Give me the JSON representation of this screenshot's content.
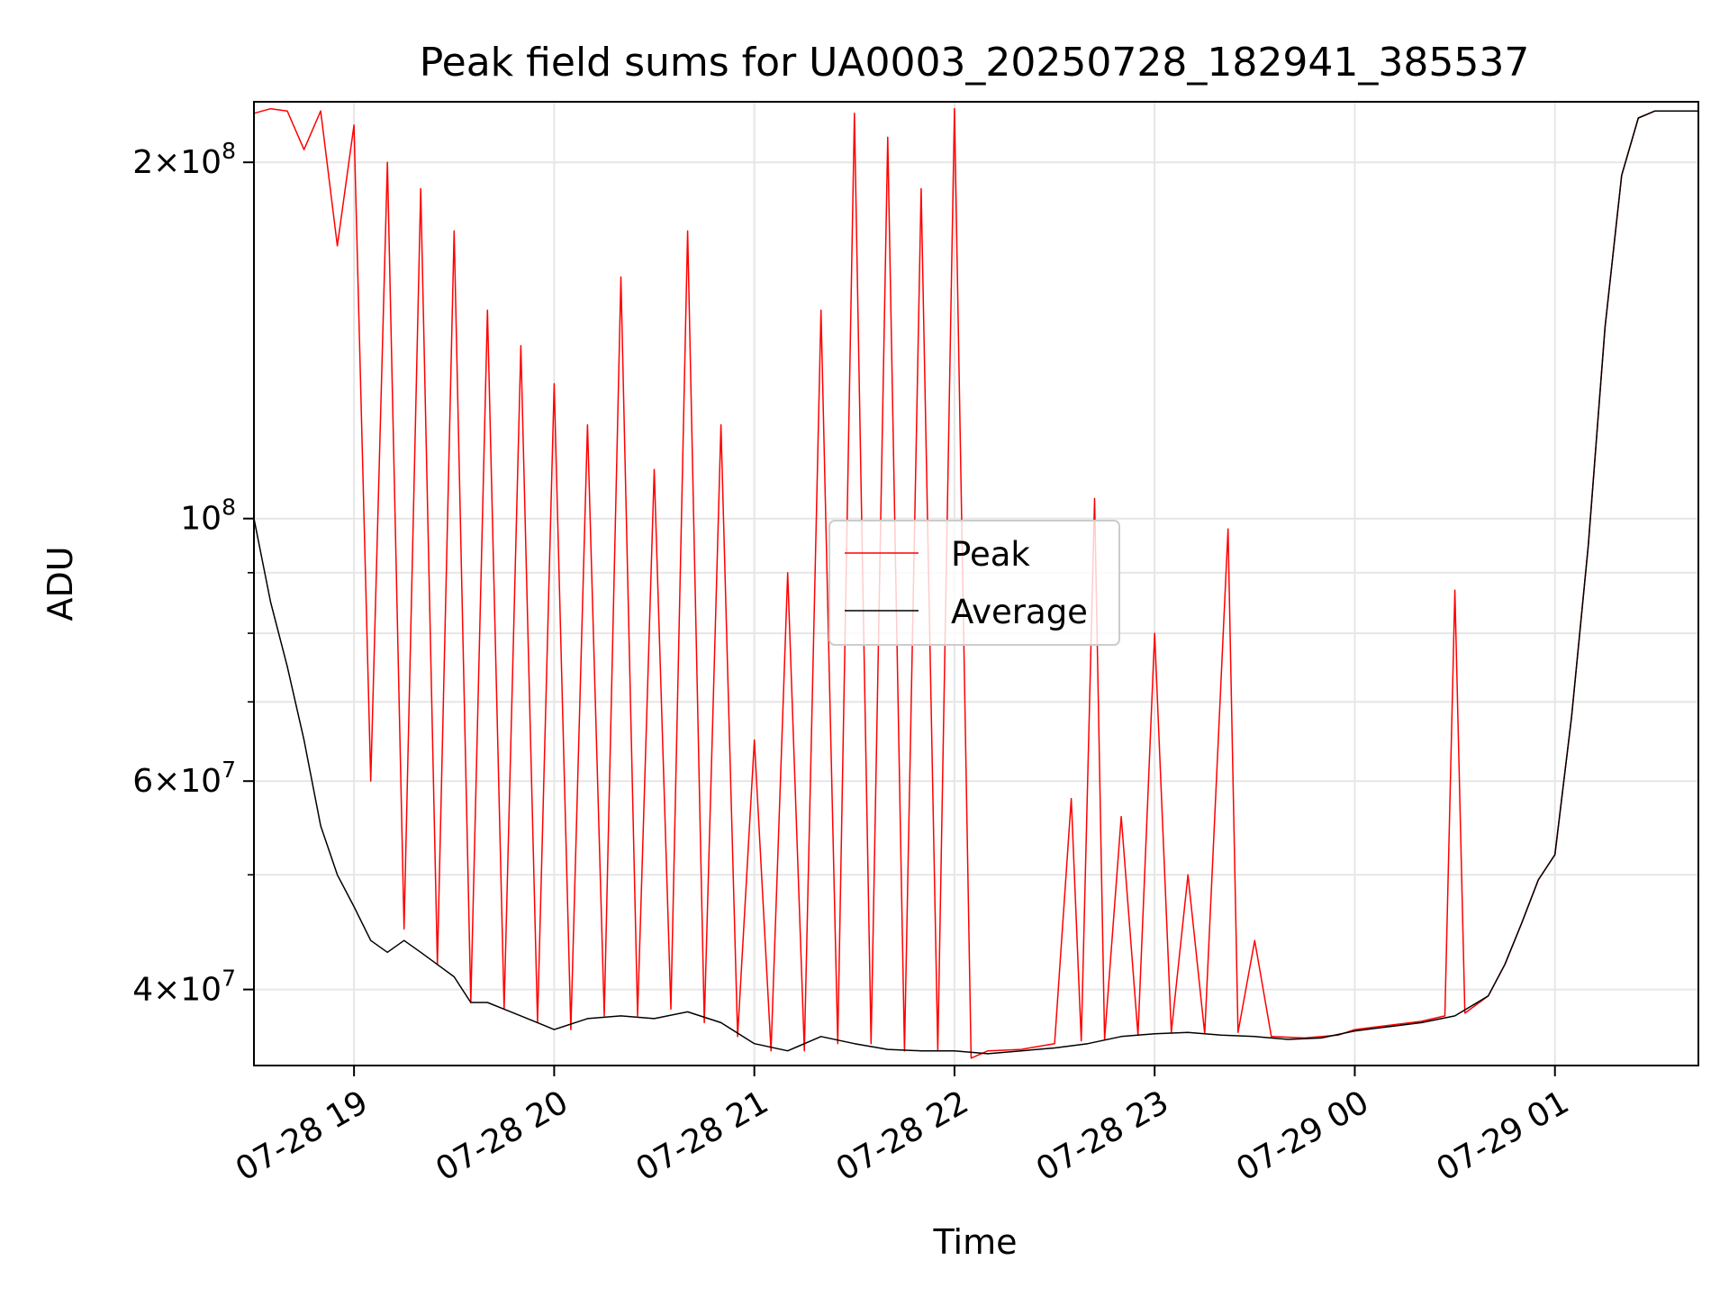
{
  "chart_data": {
    "type": "line",
    "title": "Peak field sums for UA0003_20250728_182941_385537",
    "xlabel": "Time",
    "ylabel": "ADU",
    "y_scale": "log",
    "ylim": [
      34500000,
      225000000
    ],
    "xlim": [
      "2025-07-28 18:30",
      "2025-07-29 01:43"
    ],
    "grid": true,
    "legend_position": "center",
    "x_ticks": [
      {
        "t": "2025-07-28 19:00",
        "label": "07-28 19"
      },
      {
        "t": "2025-07-28 20:00",
        "label": "07-28 20"
      },
      {
        "t": "2025-07-28 21:00",
        "label": "07-28 21"
      },
      {
        "t": "2025-07-28 22:00",
        "label": "07-28 22"
      },
      {
        "t": "2025-07-28 23:00",
        "label": "07-28 23"
      },
      {
        "t": "2025-07-29 00:00",
        "label": "07-29 00"
      },
      {
        "t": "2025-07-29 01:00",
        "label": "07-29 01"
      }
    ],
    "y_ticks": [
      {
        "value": 40000000,
        "mantissa": "4",
        "exp": "7"
      },
      {
        "value": 60000000,
        "mantissa": "6",
        "exp": "7"
      },
      {
        "value": 100000000,
        "mantissa": "",
        "exp": "8"
      },
      {
        "value": 200000000,
        "mantissa": "2",
        "exp": "8"
      }
    ],
    "y_minor_ticks": [
      50000000,
      70000000,
      80000000,
      90000000
    ],
    "series": [
      {
        "name": "Peak",
        "color": "#ff0000",
        "points": [
          [
            "2025-07-28 18:30",
            220000000
          ],
          [
            "2025-07-28 18:35",
            222000000
          ],
          [
            "2025-07-28 18:40",
            221000000
          ],
          [
            "2025-07-28 18:45",
            205000000
          ],
          [
            "2025-07-28 18:50",
            221000000
          ],
          [
            "2025-07-28 18:55",
            170000000
          ],
          [
            "2025-07-28 19:00",
            215000000
          ],
          [
            "2025-07-28 19:05",
            60000000
          ],
          [
            "2025-07-28 19:10",
            200000000
          ],
          [
            "2025-07-28 19:15",
            45000000
          ],
          [
            "2025-07-28 19:20",
            190000000
          ],
          [
            "2025-07-28 19:25",
            42000000
          ],
          [
            "2025-07-28 19:30",
            175000000
          ],
          [
            "2025-07-28 19:35",
            39000000
          ],
          [
            "2025-07-28 19:40",
            150000000
          ],
          [
            "2025-07-28 19:45",
            38500000
          ],
          [
            "2025-07-28 19:50",
            140000000
          ],
          [
            "2025-07-28 19:55",
            37500000
          ],
          [
            "2025-07-28 20:00",
            130000000
          ],
          [
            "2025-07-28 20:05",
            37000000
          ],
          [
            "2025-07-28 20:10",
            120000000
          ],
          [
            "2025-07-28 20:15",
            38000000
          ],
          [
            "2025-07-28 20:20",
            160000000
          ],
          [
            "2025-07-28 20:25",
            38000000
          ],
          [
            "2025-07-28 20:30",
            110000000
          ],
          [
            "2025-07-28 20:35",
            38500000
          ],
          [
            "2025-07-28 20:40",
            175000000
          ],
          [
            "2025-07-28 20:45",
            37500000
          ],
          [
            "2025-07-28 20:50",
            120000000
          ],
          [
            "2025-07-28 20:55",
            36500000
          ],
          [
            "2025-07-28 21:00",
            65000000
          ],
          [
            "2025-07-28 21:05",
            35500000
          ],
          [
            "2025-07-28 21:10",
            90000000
          ],
          [
            "2025-07-28 21:15",
            35500000
          ],
          [
            "2025-07-28 21:20",
            150000000
          ],
          [
            "2025-07-28 21:25",
            36000000
          ],
          [
            "2025-07-28 21:30",
            220000000
          ],
          [
            "2025-07-28 21:35",
            36000000
          ],
          [
            "2025-07-28 21:40",
            210000000
          ],
          [
            "2025-07-28 21:45",
            35500000
          ],
          [
            "2025-07-28 21:50",
            190000000
          ],
          [
            "2025-07-28 21:55",
            35500000
          ],
          [
            "2025-07-28 22:00",
            222000000
          ],
          [
            "2025-07-28 22:05",
            35000000
          ],
          [
            "2025-07-28 22:10",
            35500000
          ],
          [
            "2025-07-28 22:20",
            35600000
          ],
          [
            "2025-07-28 22:30",
            36000000
          ],
          [
            "2025-07-28 22:35",
            58000000
          ],
          [
            "2025-07-28 22:38",
            36200000
          ],
          [
            "2025-07-28 22:42",
            104000000
          ],
          [
            "2025-07-28 22:45",
            36300000
          ],
          [
            "2025-07-28 22:50",
            56000000
          ],
          [
            "2025-07-28 22:55",
            36600000
          ],
          [
            "2025-07-28 23:00",
            80000000
          ],
          [
            "2025-07-28 23:05",
            36800000
          ],
          [
            "2025-07-28 23:10",
            50000000
          ],
          [
            "2025-07-28 23:15",
            36700000
          ],
          [
            "2025-07-28 23:22",
            98000000
          ],
          [
            "2025-07-28 23:25",
            36800000
          ],
          [
            "2025-07-28 23:30",
            44000000
          ],
          [
            "2025-07-28 23:35",
            36500000
          ],
          [
            "2025-07-28 23:45",
            36400000
          ],
          [
            "2025-07-28 23:55",
            36600000
          ],
          [
            "2025-07-29 00:00",
            37000000
          ],
          [
            "2025-07-29 00:10",
            37300000
          ],
          [
            "2025-07-29 00:20",
            37600000
          ],
          [
            "2025-07-29 00:27",
            38000000
          ],
          [
            "2025-07-29 00:30",
            87000000
          ],
          [
            "2025-07-29 00:33",
            38200000
          ],
          [
            "2025-07-29 00:40",
            39500000
          ],
          [
            "2025-07-29 00:45",
            42000000
          ],
          [
            "2025-07-29 00:50",
            45500000
          ],
          [
            "2025-07-29 00:55",
            49500000
          ],
          [
            "2025-07-29 01:00",
            52000000
          ],
          [
            "2025-07-29 01:05",
            68000000
          ],
          [
            "2025-07-29 01:10",
            95000000
          ],
          [
            "2025-07-29 01:15",
            145000000
          ],
          [
            "2025-07-29 01:20",
            195000000
          ],
          [
            "2025-07-29 01:25",
            218000000
          ],
          [
            "2025-07-29 01:30",
            221000000
          ],
          [
            "2025-07-29 01:35",
            221000000
          ],
          [
            "2025-07-29 01:43",
            221000000
          ]
        ]
      },
      {
        "name": "Average",
        "color": "#000000",
        "points": [
          [
            "2025-07-28 18:30",
            100000000
          ],
          [
            "2025-07-28 18:35",
            85000000
          ],
          [
            "2025-07-28 18:40",
            75000000
          ],
          [
            "2025-07-28 18:45",
            65000000
          ],
          [
            "2025-07-28 18:50",
            55000000
          ],
          [
            "2025-07-28 18:55",
            50000000
          ],
          [
            "2025-07-28 19:00",
            47000000
          ],
          [
            "2025-07-28 19:05",
            44000000
          ],
          [
            "2025-07-28 19:10",
            43000000
          ],
          [
            "2025-07-28 19:15",
            44000000
          ],
          [
            "2025-07-28 19:20",
            43000000
          ],
          [
            "2025-07-28 19:25",
            42000000
          ],
          [
            "2025-07-28 19:30",
            41000000
          ],
          [
            "2025-07-28 19:35",
            39000000
          ],
          [
            "2025-07-28 19:40",
            39000000
          ],
          [
            "2025-07-28 19:45",
            38500000
          ],
          [
            "2025-07-28 19:50",
            38000000
          ],
          [
            "2025-07-28 19:55",
            37500000
          ],
          [
            "2025-07-28 20:00",
            37000000
          ],
          [
            "2025-07-28 20:10",
            37800000
          ],
          [
            "2025-07-28 20:20",
            38000000
          ],
          [
            "2025-07-28 20:30",
            37800000
          ],
          [
            "2025-07-28 20:40",
            38300000
          ],
          [
            "2025-07-28 20:50",
            37500000
          ],
          [
            "2025-07-28 21:00",
            36000000
          ],
          [
            "2025-07-28 21:10",
            35500000
          ],
          [
            "2025-07-28 21:20",
            36500000
          ],
          [
            "2025-07-28 21:30",
            36000000
          ],
          [
            "2025-07-28 21:40",
            35600000
          ],
          [
            "2025-07-28 21:50",
            35500000
          ],
          [
            "2025-07-28 22:00",
            35500000
          ],
          [
            "2025-07-28 22:10",
            35300000
          ],
          [
            "2025-07-28 22:20",
            35500000
          ],
          [
            "2025-07-28 22:30",
            35700000
          ],
          [
            "2025-07-28 22:40",
            36000000
          ],
          [
            "2025-07-28 22:50",
            36500000
          ],
          [
            "2025-07-28 23:00",
            36700000
          ],
          [
            "2025-07-28 23:10",
            36800000
          ],
          [
            "2025-07-28 23:20",
            36600000
          ],
          [
            "2025-07-28 23:30",
            36500000
          ],
          [
            "2025-07-28 23:40",
            36300000
          ],
          [
            "2025-07-28 23:50",
            36400000
          ],
          [
            "2025-07-29 00:00",
            36900000
          ],
          [
            "2025-07-29 00:10",
            37200000
          ],
          [
            "2025-07-29 00:20",
            37500000
          ],
          [
            "2025-07-29 00:30",
            38000000
          ],
          [
            "2025-07-29 00:40",
            39500000
          ],
          [
            "2025-07-29 00:45",
            42000000
          ],
          [
            "2025-07-29 00:50",
            45500000
          ],
          [
            "2025-07-29 00:55",
            49500000
          ],
          [
            "2025-07-29 01:00",
            52000000
          ],
          [
            "2025-07-29 01:05",
            68000000
          ],
          [
            "2025-07-29 01:10",
            95000000
          ],
          [
            "2025-07-29 01:15",
            145000000
          ],
          [
            "2025-07-29 01:20",
            195000000
          ],
          [
            "2025-07-29 01:25",
            218000000
          ],
          [
            "2025-07-29 01:30",
            221000000
          ],
          [
            "2025-07-29 01:35",
            221000000
          ],
          [
            "2025-07-29 01:43",
            221000000
          ]
        ]
      }
    ]
  }
}
